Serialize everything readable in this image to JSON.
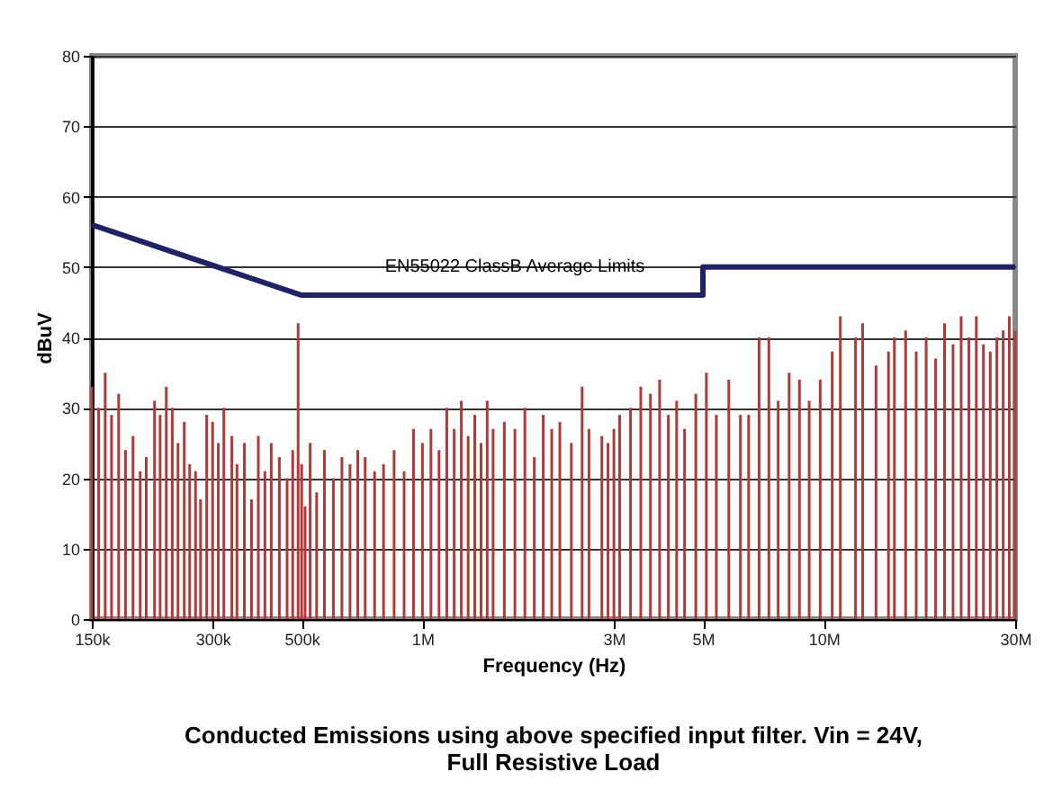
{
  "chart_data": {
    "type": "bar",
    "title": "Conducted Emissions using above specified input filter. Vin = 24V,\nFull Resistive Load",
    "xlabel": "Frequency (Hz)",
    "ylabel": "dBuV",
    "log": "x",
    "grid": "y",
    "xlim": [
      150000,
      30000000
    ],
    "xticks": [
      {
        "value": 150000,
        "label": "150k"
      },
      {
        "value": 300000,
        "label": "300k"
      },
      {
        "value": 500000,
        "label": "500k"
      },
      {
        "value": 1000000,
        "label": "1M"
      },
      {
        "value": 3000000,
        "label": "3M"
      },
      {
        "value": 5000000,
        "label": "5M"
      },
      {
        "value": 10000000,
        "label": "10M"
      },
      {
        "value": 30000000,
        "label": "30M"
      }
    ],
    "ylim": [
      0,
      80
    ],
    "yticks": [
      0,
      10,
      20,
      30,
      40,
      50,
      60,
      70,
      80
    ],
    "annotations": [
      "EN55022 ClassB Average Limits"
    ],
    "series": [
      {
        "color": "#b03a3a",
        "x": [
          150000,
          156000,
          162000,
          168000,
          175000,
          182000,
          190000,
          198000,
          205000,
          215000,
          222000,
          230000,
          238000,
          246000,
          255000,
          263000,
          272000,
          280000,
          290000,
          300000,
          310000,
          320000,
          335000,
          345000,
          360000,
          375000,
          390000,
          405000,
          420000,
          440000,
          460000,
          475000,
          490000,
          500000,
          510000,
          525000,
          545000,
          570000,
          600000,
          630000,
          660000,
          690000,
          720000,
          760000,
          800000,
          850000,
          900000,
          950000,
          1000000,
          1050000,
          1100000,
          1150000,
          1200000,
          1250000,
          1300000,
          1350000,
          1400000,
          1450000,
          1500000,
          1600000,
          1700000,
          1800000,
          1900000,
          2000000,
          2100000,
          2200000,
          2350000,
          2500000,
          2600000,
          2800000,
          2900000,
          3000000,
          3100000,
          3300000,
          3500000,
          3700000,
          3900000,
          4100000,
          4300000,
          4500000,
          4800000,
          5100000,
          5400000,
          5800000,
          6200000,
          6500000,
          6900000,
          7300000,
          7700000,
          8200000,
          8700000,
          9200000,
          9800000,
          10500000,
          11000000,
          12000000,
          12500000,
          13500000,
          14500000,
          15000000,
          16000000,
          17000000,
          18000000,
          19000000,
          20000000,
          21000000,
          22000000,
          23000000,
          24000000,
          25000000,
          26000000,
          27000000,
          28000000,
          29000000,
          30000000
        ],
        "values": [
          33,
          30,
          35,
          29,
          32,
          24,
          26,
          21,
          23,
          31,
          29,
          33,
          30,
          25,
          28,
          22,
          21,
          17,
          29,
          28,
          25,
          30,
          26,
          22,
          25,
          17,
          26,
          21,
          25,
          23,
          20,
          24,
          42,
          22,
          16,
          25,
          18,
          24,
          20,
          23,
          22,
          24,
          23,
          21,
          22,
          24,
          21,
          27,
          25,
          27,
          24,
          30,
          27,
          31,
          26,
          29,
          25,
          31,
          27,
          28,
          27,
          30,
          23,
          29,
          27,
          28,
          25,
          33,
          27,
          26,
          25,
          27,
          29,
          30,
          33,
          32,
          34,
          29,
          31,
          27,
          32,
          35,
          29,
          34,
          29,
          29,
          40,
          40,
          31,
          35,
          34,
          31,
          34,
          38,
          43,
          40,
          42,
          36,
          38,
          40,
          41,
          38,
          40,
          37,
          42,
          39,
          43,
          40,
          43,
          39,
          38,
          40,
          41,
          43,
          41
        ]
      },
      {
        "type": "line",
        "color": "#1f2363",
        "x": [
          150000,
          500000,
          5000000,
          5000000,
          30000000
        ],
        "values": [
          56,
          46,
          46,
          50,
          50
        ]
      }
    ]
  }
}
